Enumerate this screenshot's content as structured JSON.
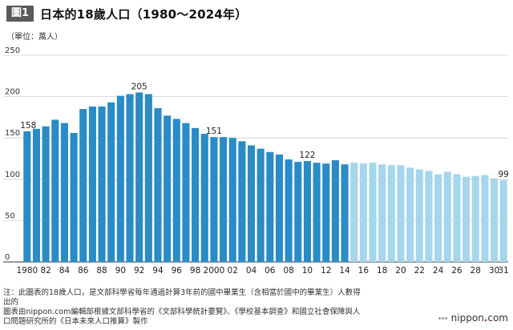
{
  "header": {
    "badge": "圖1",
    "title": "日本的18歲人口（1980〜2024年）"
  },
  "unit_label": "（單位：萬人）",
  "footnotes": {
    "line1": "注：此圖表的18歲人口，是文部科學省每年通過計算3年前的國中畢業生（含相當於國中的畢業生）人數得",
    "line2": "出的",
    "line3": "圖表由nippon.com編輯部根據文部科學省的《文部科學統計要覽》、《學校基本調查》和國立社會保障與人",
    "line4": "口問題研究所的《日本未來人口推算》製作"
  },
  "brand": {
    "name": "nippon",
    "dot": ".",
    "suffix": "com"
  },
  "chart_data": {
    "type": "bar",
    "ylim": [
      0,
      250
    ],
    "yticks": [
      0,
      50,
      100,
      150,
      200,
      250
    ],
    "grid": true,
    "x": [
      1980,
      1981,
      1982,
      1983,
      1984,
      1985,
      1986,
      1987,
      1988,
      1989,
      1990,
      1991,
      1992,
      1993,
      1994,
      1995,
      1996,
      1997,
      1998,
      1999,
      2000,
      2001,
      2002,
      2003,
      2004,
      2005,
      2006,
      2007,
      2008,
      2009,
      2010,
      2011,
      2012,
      2013,
      2014,
      2015,
      2016,
      2017,
      2018,
      2019,
      2020,
      2021,
      2022,
      2023,
      2024,
      2025,
      2026,
      2027,
      2028,
      2029,
      2030,
      2031
    ],
    "xtick_labels": [
      {
        "x": 1980,
        "label": "1980"
      },
      {
        "x": 1982,
        "label": "82"
      },
      {
        "x": 1984,
        "label": "84"
      },
      {
        "x": 1986,
        "label": "86"
      },
      {
        "x": 1988,
        "label": "88"
      },
      {
        "x": 1990,
        "label": "90"
      },
      {
        "x": 1992,
        "label": "92"
      },
      {
        "x": 1994,
        "label": "94"
      },
      {
        "x": 1996,
        "label": "96"
      },
      {
        "x": 1998,
        "label": "98"
      },
      {
        "x": 2000,
        "label": "2000"
      },
      {
        "x": 2002,
        "label": "02"
      },
      {
        "x": 2004,
        "label": "04"
      },
      {
        "x": 2006,
        "label": "06"
      },
      {
        "x": 2008,
        "label": "08"
      },
      {
        "x": 2010,
        "label": "10"
      },
      {
        "x": 2012,
        "label": "12"
      },
      {
        "x": 2014,
        "label": "14"
      },
      {
        "x": 2016,
        "label": "16"
      },
      {
        "x": 2018,
        "label": "18"
      },
      {
        "x": 2020,
        "label": "20"
      },
      {
        "x": 2022,
        "label": "22"
      },
      {
        "x": 2024,
        "label": "24"
      },
      {
        "x": 2026,
        "label": "26"
      },
      {
        "x": 2028,
        "label": "28"
      },
      {
        "x": 2030,
        "label": "30"
      },
      {
        "x": 2031,
        "label": "31"
      }
    ],
    "values": [
      158,
      161,
      164,
      172,
      168,
      156,
      185,
      188,
      188,
      193,
      201,
      203,
      205,
      203,
      186,
      177,
      173,
      168,
      162,
      155,
      151,
      151,
      150,
      146,
      141,
      137,
      133,
      130,
      124,
      121,
      122,
      120,
      119,
      123,
      118,
      120,
      119,
      120,
      118,
      117,
      117,
      114,
      112,
      110,
      106,
      109,
      106,
      103,
      104,
      105,
      101,
      99
    ],
    "actual_end_index": 34,
    "colors": {
      "actual": "#2a8bc6",
      "projected": "#a5d6ec",
      "grid": "#cfcfcf",
      "axis": "#333333"
    },
    "annotations": [
      {
        "x": 1980,
        "label": "158"
      },
      {
        "x": 1992,
        "label": "205"
      },
      {
        "x": 2000,
        "label": "151"
      },
      {
        "x": 2010,
        "label": "122"
      },
      {
        "x": 2031,
        "label": "99"
      }
    ]
  }
}
